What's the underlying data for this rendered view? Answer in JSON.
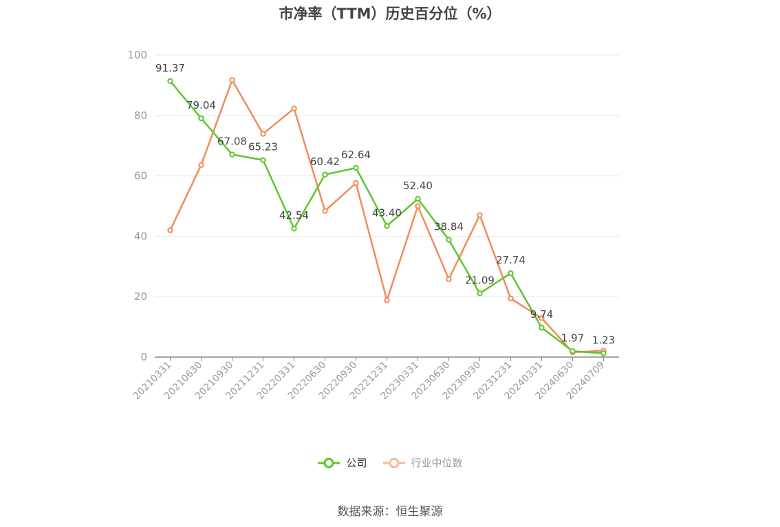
{
  "title": "市净率（TTM）历史百分位（%）",
  "source": "数据来源：恒生聚源",
  "colors": {
    "company": "#5ac82a",
    "industry": "#f28b5a",
    "axis": "#9a9a9a",
    "grid": "#e4e8f0",
    "label": "#444444"
  },
  "chart_data": {
    "type": "line",
    "title": "市净率（TTM）历史百分位（%）",
    "categories": [
      "20210331",
      "20210630",
      "20210930",
      "20211231",
      "20220331",
      "20220630",
      "20220930",
      "20221231",
      "20230331",
      "20230630",
      "20230930",
      "20231231",
      "20240331",
      "20240630",
      "20240709"
    ],
    "ylim": [
      0,
      100
    ],
    "yticks": [
      0,
      20,
      40,
      60,
      80,
      100
    ],
    "grid": true,
    "legend_position": "bottom-center",
    "series": [
      {
        "name": "公司",
        "color": "#5ac82a",
        "show_labels": true,
        "values": [
          91.37,
          79.04,
          67.08,
          65.23,
          42.54,
          60.42,
          62.64,
          43.4,
          52.4,
          38.84,
          21.09,
          27.74,
          9.74,
          1.97,
          1.23
        ]
      },
      {
        "name": "行业中位数",
        "color": "#f28b5a",
        "show_labels": false,
        "values": [
          42.0,
          63.6,
          91.7,
          73.9,
          82.3,
          48.4,
          57.6,
          18.8,
          50.0,
          25.8,
          47.0,
          19.4,
          12.9,
          1.6,
          2.1
        ]
      }
    ],
    "data_labels": [
      "91.37",
      "79.04",
      "67.08",
      "65.23",
      "42.54",
      "60.42",
      "62.64",
      "43.40",
      "52.40",
      "38.84",
      "21.09",
      "27.74",
      "9.74",
      "1.97",
      "1.23"
    ]
  },
  "legend": {
    "company": "公司",
    "industry": "行业中位数"
  }
}
